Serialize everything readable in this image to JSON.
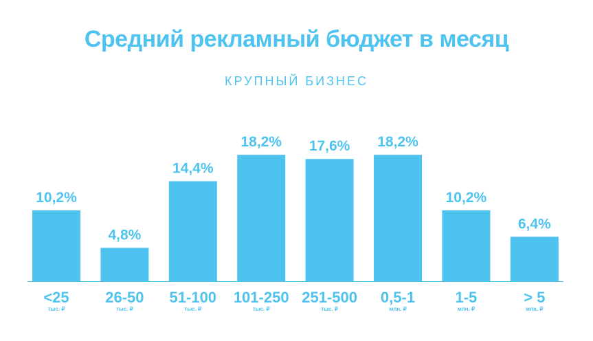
{
  "chart_data": {
    "type": "bar",
    "title": "Средний рекламный бюджет в месяц",
    "subtitle": "КРУПНЫЙ БИЗНЕС",
    "categories": [
      "<25",
      "26-50",
      "51-100",
      "101-250",
      "251-500",
      "0,5-1",
      "1-5",
      "> 5"
    ],
    "units": [
      "тыс. ₽",
      "тыс. ₽",
      "тыс. ₽",
      "тыс. ₽",
      "тыс. ₽",
      "млн. ₽",
      "млн. ₽",
      "млн. ₽"
    ],
    "values": [
      10.2,
      4.8,
      14.4,
      18.2,
      17.6,
      18.2,
      10.2,
      6.4
    ],
    "value_labels": [
      "10,2%",
      "4,8%",
      "14,4%",
      "18,2%",
      "17,6%",
      "18,2%",
      "10,2%",
      "6,4%"
    ],
    "xlabel": "",
    "ylabel": "",
    "grid": false,
    "legend": "none",
    "bar_color": "#4ec3ef"
  }
}
